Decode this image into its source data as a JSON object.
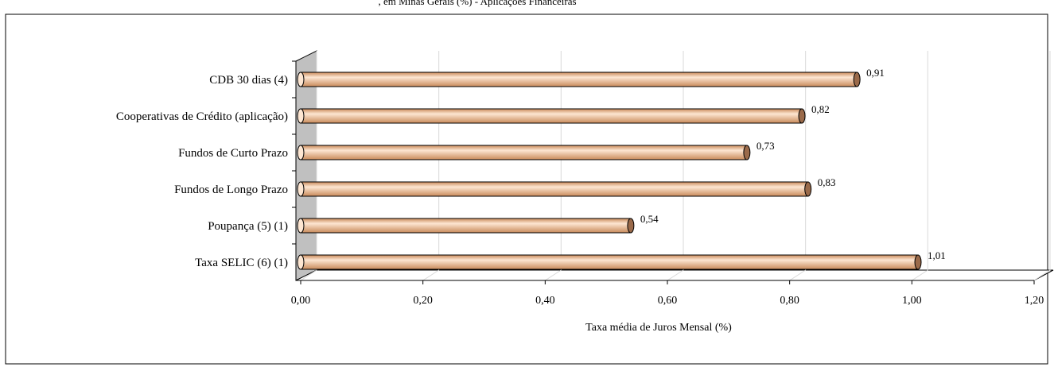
{
  "header": {
    "title_fragment": ", em Minas Gerais (%) - Aplicações Financeiras"
  },
  "chart_data": {
    "type": "bar",
    "orientation": "horizontal",
    "categories": [
      "CDB 30 dias (4)",
      "Cooperativas de Crédito (aplicação)",
      "Fundos de Curto Prazo",
      "Fundos de Longo Prazo",
      "Poupança (5) (1)",
      "Taxa SELIC (6) (1)"
    ],
    "values": [
      0.91,
      0.82,
      0.73,
      0.83,
      0.54,
      1.01
    ],
    "value_labels": [
      "0,91",
      "0,82",
      "0,73",
      "0,83",
      "0,54",
      "1,01"
    ],
    "x_ticks": [
      0.0,
      0.2,
      0.4,
      0.6,
      0.8,
      1.0,
      1.2
    ],
    "x_tick_labels": [
      "0,00",
      "0,20",
      "0,40",
      "0,60",
      "0,80",
      "1,00",
      "1,20"
    ],
    "xlim": [
      0,
      1.2
    ],
    "xlabel": "Taxa média de Juros Mensal (%)",
    "ylabel": "",
    "grid": true,
    "legend": "none",
    "bar_style": "3d-cylinder",
    "colors": {
      "bar_fill": "#f4c7a1",
      "bar_highlight": "#fde6d2",
      "bar_shadow": "#c98a5a",
      "bar_cap": "#9a6a4a",
      "wall": "#c0c0c0",
      "grid": "#d9d9d9",
      "axis": "#000000"
    }
  }
}
